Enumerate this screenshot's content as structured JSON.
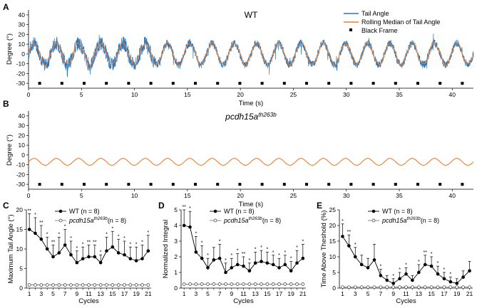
{
  "chart_data": [
    {
      "panel": "A",
      "type": "line",
      "title": "WT",
      "xlabel": "Time (s)",
      "ylabel": "Degree (°)",
      "xlim": [
        0,
        42
      ],
      "ylim": [
        -35,
        45
      ],
      "xticks": [
        0,
        5,
        10,
        15,
        20,
        25,
        30,
        35,
        40
      ],
      "yticks": [
        40,
        30,
        20,
        10,
        0,
        -10,
        -20,
        -30
      ],
      "legend": [
        "Tail Angle",
        "Rolling Median of Tail Angle",
        "Black Frame"
      ],
      "legend_position": "top-right",
      "period_s": 2.1,
      "amplitude_deg": 11,
      "black_frames_s": [
        1.05,
        3.15,
        5.25,
        7.35,
        9.45,
        11.55,
        13.65,
        15.75,
        17.85,
        19.95,
        22.05,
        24.15,
        26.25,
        28.35,
        30.45,
        32.55,
        34.65,
        36.75,
        38.85,
        40.95
      ],
      "black_frame_y": -30,
      "colors": {
        "tail": "#2e75b6",
        "median": "#ed7d31",
        "frame": "#000000"
      }
    },
    {
      "panel": "B",
      "type": "line",
      "title": "pcdh15a",
      "title_sup": "th263b",
      "xlabel": "Time (s)",
      "ylabel": "Degree (°)",
      "xlim": [
        0,
        42
      ],
      "ylim": [
        -35,
        45
      ],
      "xticks": [
        0,
        5,
        10,
        15,
        20,
        25,
        30,
        35,
        40
      ],
      "yticks": [
        40,
        30,
        20,
        10,
        0,
        -10,
        -20,
        -30
      ],
      "period_s": 2.1,
      "amplitude_deg": 3.5,
      "offset_deg": -7,
      "black_frames_s": [
        1.05,
        3.15,
        5.25,
        7.35,
        9.45,
        11.55,
        13.65,
        15.75,
        17.85,
        19.95,
        22.05,
        24.15,
        26.25,
        28.35,
        30.45,
        32.55,
        34.65,
        36.75,
        38.85,
        40.95
      ],
      "black_frame_y": -30
    },
    {
      "panel": "C",
      "type": "line",
      "xlabel": "Cycles",
      "ylabel": "Maximum Tail Angle (°)",
      "ylim": [
        0,
        20
      ],
      "yticks": [
        0,
        5,
        10,
        15,
        20
      ],
      "xticks": [
        1,
        3,
        5,
        7,
        9,
        11,
        13,
        15,
        17,
        19,
        21
      ],
      "x": [
        1,
        2,
        3,
        4,
        5,
        6,
        7,
        8,
        9,
        10,
        11,
        12,
        13,
        14,
        15,
        16,
        17,
        18,
        19,
        20,
        21
      ],
      "series": [
        {
          "name": "WT (n = 8)",
          "values": [
            15,
            14,
            12.5,
            10,
            8,
            9,
            11,
            8.5,
            6.5,
            7.5,
            8,
            8,
            6.5,
            9.5,
            10.5,
            9,
            8.5,
            7.5,
            7,
            7.5,
            9.5
          ],
          "err": [
            4,
            4,
            3.5,
            3,
            3,
            4,
            4,
            3.5,
            3,
            3,
            3,
            3,
            2,
            3.5,
            4,
            3.5,
            3.5,
            3,
            3.5,
            3.5,
            4
          ]
        },
        {
          "name": "pcdh15a",
          "name_sup": "th263b",
          "name_suffix": "(n = 8)",
          "values": [
            0.8,
            0.8,
            0.8,
            0.8,
            0.8,
            0.8,
            0.8,
            0.8,
            0.8,
            0.8,
            0.8,
            0.8,
            0.8,
            0.8,
            0.8,
            0.8,
            0.8,
            0.8,
            0.8,
            0.8,
            0.8
          ]
        }
      ],
      "stars": [
        "**",
        "*",
        "**",
        "*",
        "**",
        "*",
        "*",
        "*",
        "*",
        "*",
        "**",
        "**",
        "*",
        "*",
        "*",
        "*",
        "*",
        "*",
        "*",
        "*",
        "*"
      ]
    },
    {
      "panel": "D",
      "type": "line",
      "xlabel": "Cycles",
      "ylabel": "Normalized Integral",
      "ylim": [
        0,
        5
      ],
      "yticks": [
        0,
        1,
        2,
        3,
        4,
        5
      ],
      "xticks": [
        1,
        3,
        5,
        7,
        9,
        11,
        13,
        15,
        17,
        19,
        21
      ],
      "x": [
        1,
        2,
        3,
        4,
        5,
        6,
        7,
        8,
        9,
        10,
        11,
        12,
        13,
        14,
        15,
        16,
        17,
        18,
        19,
        20,
        21
      ],
      "series": [
        {
          "name": "WT (n = 8)",
          "values": [
            4,
            3.9,
            2.3,
            1.9,
            1.3,
            1.8,
            1.9,
            1,
            1.3,
            1.5,
            1.4,
            1.1,
            1.6,
            1.7,
            1.6,
            1.5,
            1.3,
            1.5,
            1.1,
            1.6,
            1.9
          ],
          "err": [
            1,
            1,
            1,
            0.8,
            0.6,
            0.8,
            0.9,
            0.6,
            0.6,
            0.7,
            0.6,
            0.5,
            0.7,
            0.7,
            0.7,
            0.6,
            0.6,
            0.6,
            0.6,
            0.8,
            0.9
          ]
        },
        {
          "name": "pcdh15a",
          "name_sup": "th263b",
          "name_suffix": "(n = 8)",
          "values": [
            0.25,
            0.25,
            0.25,
            0.25,
            0.25,
            0.25,
            0.25,
            0.25,
            0.25,
            0.25,
            0.25,
            0.25,
            0.25,
            0.25,
            0.25,
            0.25,
            0.25,
            0.25,
            0.25,
            0.25,
            0.25
          ]
        }
      ],
      "stars": [
        "**",
        "*",
        "*",
        "*",
        "*",
        "",
        "*",
        "*",
        "*",
        "*",
        "**",
        "*",
        "*",
        "*",
        "*",
        "*",
        "*",
        "*",
        "*",
        "*",
        "*"
      ]
    },
    {
      "panel": "E",
      "type": "line",
      "xlabel": "Cycles",
      "ylabel": "Time Above Theshold (%)",
      "ylim": [
        0,
        25
      ],
      "yticks": [
        0,
        5,
        10,
        15,
        20,
        25
      ],
      "xticks": [
        1,
        3,
        5,
        7,
        9,
        11,
        13,
        15,
        17,
        19,
        21
      ],
      "x": [
        1,
        2,
        3,
        4,
        5,
        6,
        7,
        8,
        9,
        10,
        11,
        12,
        13,
        14,
        15,
        16,
        17,
        18,
        19,
        20,
        21
      ],
      "series": [
        {
          "name": "WT (n = 8)",
          "values": [
            16.5,
            13.5,
            10,
            7.5,
            6.5,
            9,
            4,
            2.5,
            1.5,
            3,
            4.5,
            2.5,
            5,
            7.5,
            7,
            4.5,
            3,
            2,
            1.5,
            3.5,
            5.5
          ],
          "err": [
            4,
            3.5,
            3,
            3,
            3,
            5,
            2,
            1.5,
            1.5,
            2,
            2,
            1.5,
            2.5,
            3,
            3,
            2.5,
            2,
            1.5,
            1.5,
            2,
            3
          ]
        },
        {
          "name": "pcdh15a",
          "name_sup": "th263b",
          "name_suffix": "(n = 8)",
          "values": [
            0.3,
            0.3,
            0.3,
            0.3,
            0.3,
            0.3,
            0.3,
            0.3,
            0.3,
            0.3,
            0.3,
            0.3,
            0.3,
            0.3,
            0.3,
            0.3,
            0.3,
            0.3,
            0.3,
            0.3,
            0.3
          ]
        }
      ],
      "stars": [
        "*",
        "**",
        "*",
        "",
        "",
        "",
        "*",
        "",
        "*",
        "*",
        "*",
        "",
        "*",
        "**",
        "*",
        "*",
        "*",
        "*",
        "",
        "",
        ""
      ]
    }
  ],
  "labels": {
    "panel_a": "A",
    "panel_b": "B",
    "panel_c": "C",
    "panel_d": "D",
    "panel_e": "E"
  }
}
